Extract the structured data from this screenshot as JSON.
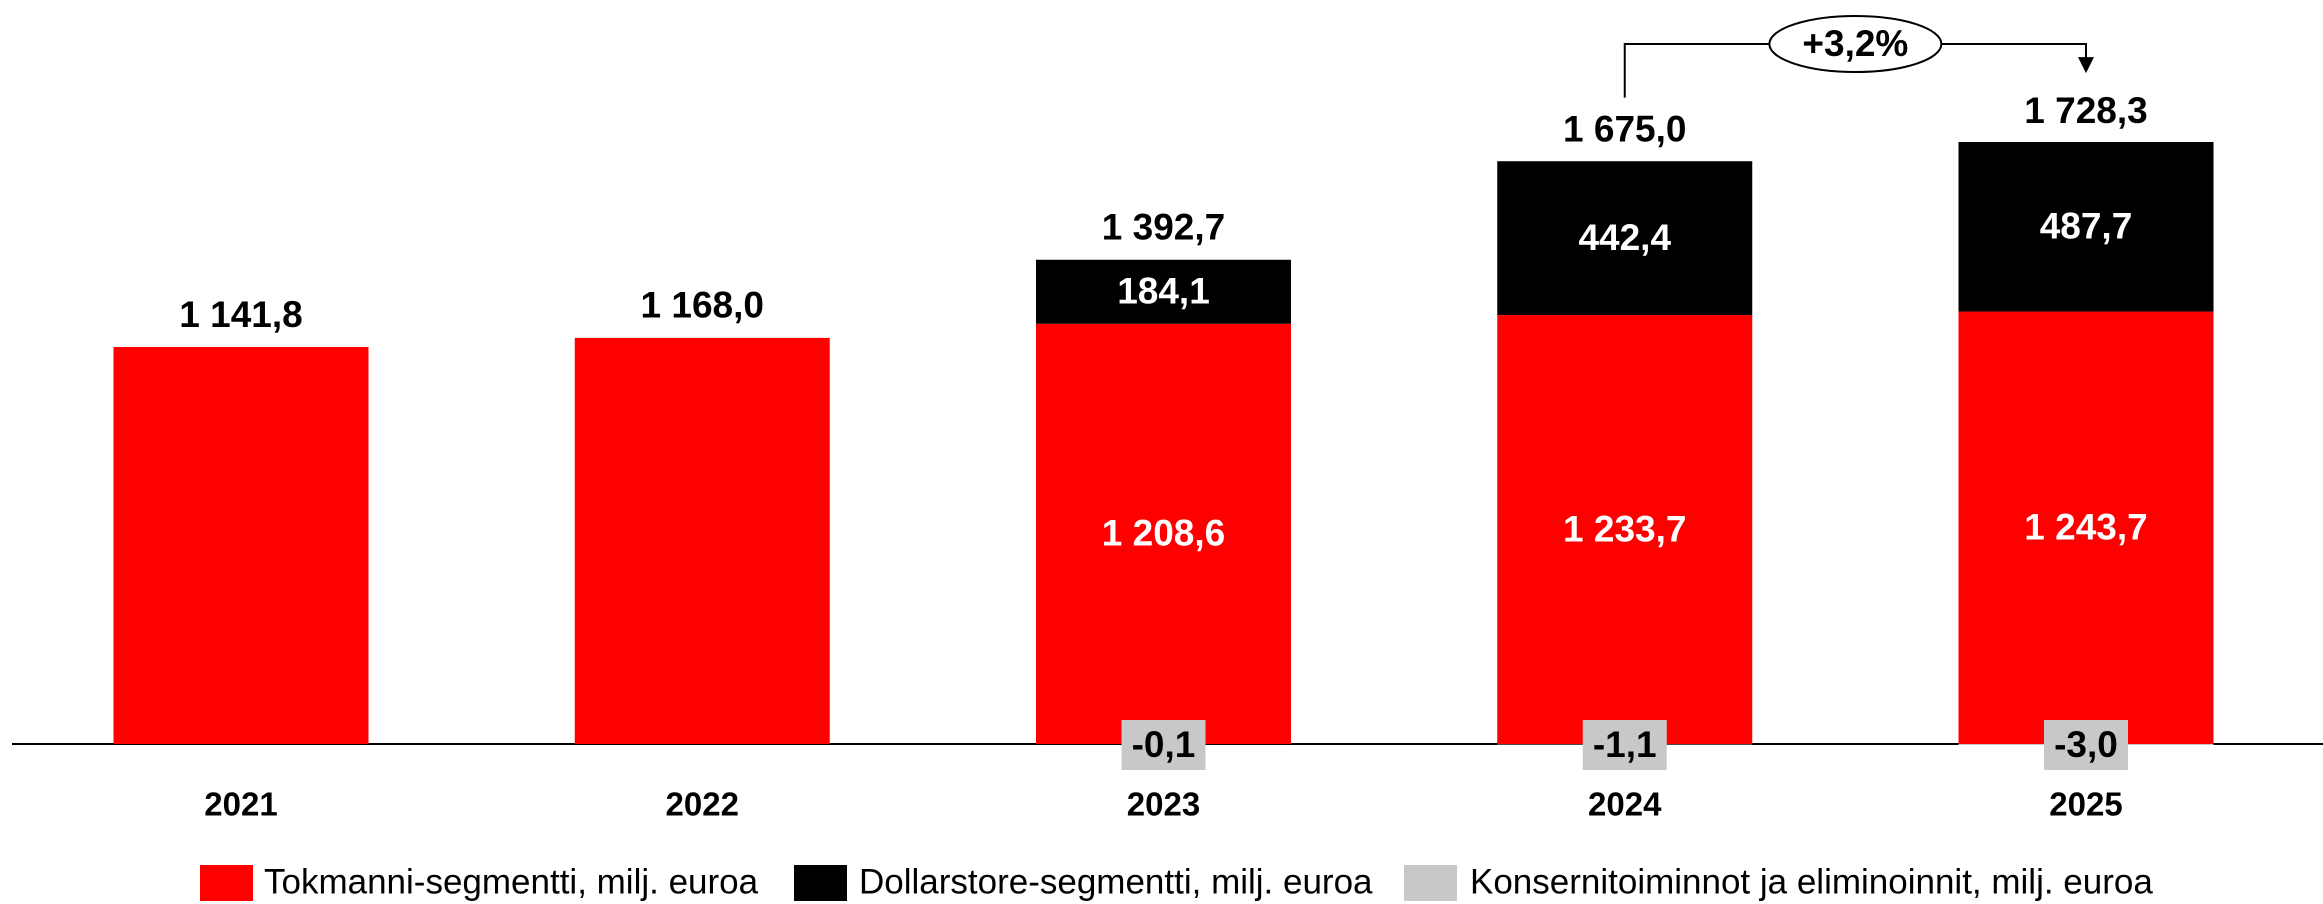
{
  "chart_data": {
    "type": "stacked-bar",
    "categories": [
      "2021",
      "2022",
      "2023",
      "2024",
      "2025"
    ],
    "series": [
      {
        "name": "Tokmanni-segmentti, milj. euroa",
        "color": "#ff0000",
        "values": [
          1141.8,
          1168.0,
          1208.6,
          1233.7,
          1243.7
        ],
        "value_labels": [
          null,
          null,
          "1 208,6",
          "1 233,7",
          "1 243,7"
        ]
      },
      {
        "name": "Dollarstore-segmentti, milj. euroa",
        "color": "#000000",
        "values": [
          null,
          null,
          184.1,
          442.4,
          487.7
        ],
        "value_labels": [
          null,
          null,
          "184,1",
          "442,4",
          "487,7"
        ]
      },
      {
        "name": "Konsernitoiminnot ja eliminoinnit, milj. euroa",
        "color": "#c8c8c8",
        "values": [
          null,
          null,
          -0.1,
          -1.1,
          -3.0
        ],
        "value_labels": [
          null,
          null,
          "-0,1",
          "-1,1",
          "-3,0"
        ]
      }
    ],
    "totals": [
      1141.8,
      1168.0,
      1392.7,
      1675.0,
      1728.3
    ],
    "total_labels": [
      "1 141,8",
      "1 168,0",
      "1 392,7",
      "1 675,0",
      "1 728,3"
    ],
    "annotation": {
      "text": "+3,2%",
      "from": "2024",
      "to": "2025"
    }
  }
}
